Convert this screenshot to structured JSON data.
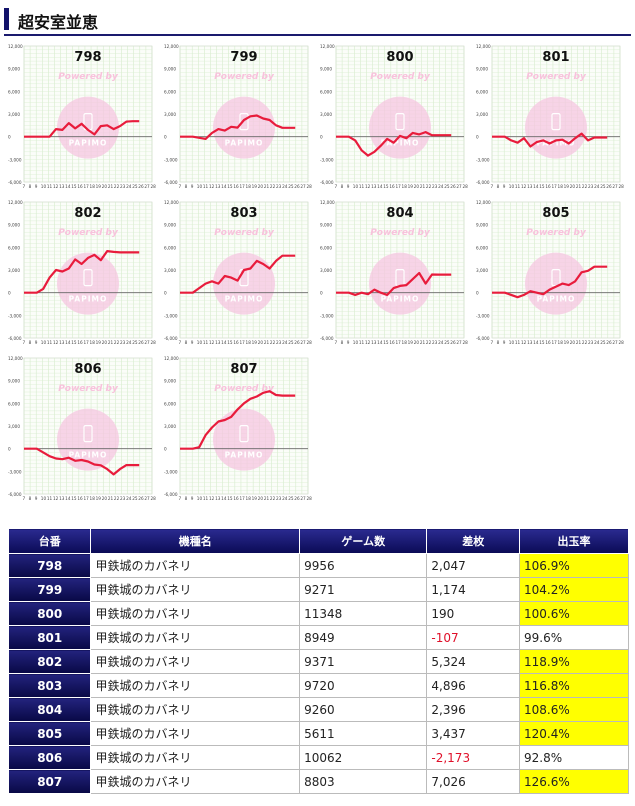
{
  "header": {
    "title": "超安室並恵"
  },
  "graph": {
    "y_ticks": [
      "12,000",
      "9,000",
      "6,000",
      "3,000",
      "0",
      "-3,000",
      "-6,000"
    ],
    "x_ticks": [
      "7",
      "8",
      "9",
      "10",
      "11",
      "12",
      "13",
      "14",
      "15",
      "16",
      "17",
      "18",
      "19",
      "20",
      "21",
      "22",
      "23",
      "24",
      "25",
      "26",
      "27",
      "28"
    ],
    "watermark_top": "Powered by",
    "watermark_bottom": "PAPIMO"
  },
  "chart_data": [
    {
      "type": "line",
      "title": "798",
      "ylim": [
        -6000,
        12000
      ],
      "x": [
        0,
        0.1,
        0.2,
        0.25,
        0.3,
        0.35,
        0.4,
        0.45,
        0.5,
        0.55,
        0.6,
        0.65,
        0.7,
        0.75,
        0.8,
        0.85,
        0.9
      ],
      "values": [
        0,
        0,
        0,
        1000,
        900,
        1800,
        1100,
        1700,
        900,
        300,
        1400,
        1500,
        1000,
        1400,
        2000,
        2047,
        2047
      ]
    },
    {
      "type": "line",
      "title": "799",
      "ylim": [
        -6000,
        12000
      ],
      "x": [
        0,
        0.1,
        0.2,
        0.25,
        0.3,
        0.35,
        0.4,
        0.45,
        0.5,
        0.55,
        0.6,
        0.65,
        0.7,
        0.75,
        0.8,
        0.85,
        0.9
      ],
      "values": [
        0,
        0,
        -300,
        500,
        1000,
        800,
        1300,
        1200,
        2200,
        2700,
        2800,
        2400,
        2200,
        1500,
        1174,
        1174,
        1174
      ]
    },
    {
      "type": "line",
      "title": "800",
      "ylim": [
        -6000,
        12000
      ],
      "x": [
        0,
        0.1,
        0.15,
        0.2,
        0.25,
        0.3,
        0.35,
        0.4,
        0.45,
        0.5,
        0.55,
        0.6,
        0.65,
        0.7,
        0.75,
        0.8,
        0.85,
        0.9
      ],
      "values": [
        0,
        0,
        -500,
        -1800,
        -2500,
        -2000,
        -1200,
        -300,
        -800,
        100,
        -200,
        500,
        300,
        600,
        200,
        190,
        190,
        190
      ]
    },
    {
      "type": "line",
      "title": "801",
      "ylim": [
        -6000,
        12000
      ],
      "x": [
        0,
        0.1,
        0.15,
        0.2,
        0.25,
        0.3,
        0.35,
        0.4,
        0.45,
        0.5,
        0.55,
        0.6,
        0.65,
        0.7,
        0.75,
        0.8,
        0.85,
        0.9
      ],
      "values": [
        0,
        0,
        -500,
        -800,
        -200,
        -1300,
        -700,
        -500,
        -900,
        -500,
        -400,
        -900,
        -200,
        400,
        -500,
        -107,
        -107,
        -107
      ]
    },
    {
      "type": "line",
      "title": "802",
      "ylim": [
        -6000,
        12000
      ],
      "x": [
        0,
        0.1,
        0.15,
        0.2,
        0.25,
        0.3,
        0.35,
        0.4,
        0.45,
        0.5,
        0.55,
        0.6,
        0.65,
        0.7,
        0.75,
        0.8,
        0.85,
        0.9
      ],
      "values": [
        0,
        0,
        500,
        2000,
        3000,
        2800,
        3200,
        4400,
        3800,
        4600,
        5000,
        4300,
        5500,
        5400,
        5324,
        5324,
        5324,
        5324
      ]
    },
    {
      "type": "line",
      "title": "803",
      "ylim": [
        -6000,
        12000
      ],
      "x": [
        0,
        0.1,
        0.15,
        0.2,
        0.25,
        0.3,
        0.35,
        0.4,
        0.45,
        0.5,
        0.55,
        0.6,
        0.65,
        0.7,
        0.75,
        0.8,
        0.85,
        0.9
      ],
      "values": [
        0,
        0,
        600,
        1200,
        1500,
        1200,
        2200,
        2000,
        1600,
        3000,
        3200,
        4200,
        3800,
        3200,
        4200,
        4896,
        4896,
        4896
      ]
    },
    {
      "type": "line",
      "title": "804",
      "ylim": [
        -6000,
        12000
      ],
      "x": [
        0,
        0.1,
        0.15,
        0.2,
        0.25,
        0.3,
        0.35,
        0.4,
        0.45,
        0.5,
        0.55,
        0.6,
        0.65,
        0.7,
        0.75,
        0.8,
        0.85,
        0.9
      ],
      "values": [
        0,
        0,
        -300,
        0,
        -200,
        400,
        0,
        -300,
        600,
        900,
        1000,
        1800,
        2600,
        1200,
        2400,
        2396,
        2396,
        2396
      ]
    },
    {
      "type": "line",
      "title": "805",
      "ylim": [
        -6000,
        12000
      ],
      "x": [
        0,
        0.1,
        0.15,
        0.2,
        0.25,
        0.3,
        0.35,
        0.4,
        0.45,
        0.5,
        0.55,
        0.6,
        0.65,
        0.7,
        0.75,
        0.8,
        0.85,
        0.9
      ],
      "values": [
        0,
        0,
        -300,
        -600,
        -300,
        200,
        0,
        -200,
        400,
        800,
        1200,
        1000,
        1500,
        2700,
        2900,
        3437,
        3437,
        3437
      ]
    },
    {
      "type": "line",
      "title": "806",
      "ylim": [
        -6000,
        12000
      ],
      "x": [
        0,
        0.1,
        0.15,
        0.2,
        0.25,
        0.3,
        0.35,
        0.4,
        0.45,
        0.5,
        0.55,
        0.6,
        0.65,
        0.7,
        0.75,
        0.8,
        0.85,
        0.9
      ],
      "values": [
        0,
        0,
        -500,
        -1000,
        -1300,
        -1400,
        -1200,
        -1600,
        -1500,
        -1700,
        -2100,
        -2200,
        -2700,
        -3400,
        -2700,
        -2173,
        -2173,
        -2173
      ]
    },
    {
      "type": "line",
      "title": "807",
      "ylim": [
        -6000,
        12000
      ],
      "x": [
        0,
        0.1,
        0.15,
        0.2,
        0.25,
        0.3,
        0.35,
        0.4,
        0.45,
        0.5,
        0.55,
        0.6,
        0.65,
        0.7,
        0.75,
        0.8,
        0.85,
        0.9
      ],
      "values": [
        0,
        0,
        200,
        1800,
        2800,
        3600,
        3800,
        4200,
        5200,
        6000,
        6600,
        6900,
        7400,
        7600,
        7100,
        7026,
        7026,
        7026
      ]
    }
  ],
  "table": {
    "headers": [
      "台番",
      "機種名",
      "ゲーム数",
      "差枚",
      "出玉率"
    ],
    "rows": [
      {
        "no": "798",
        "name": "甲鉄城のカバネリ",
        "games": "9956",
        "diff": "2,047",
        "rate": "106.9%",
        "neg": false,
        "hi": true
      },
      {
        "no": "799",
        "name": "甲鉄城のカバネリ",
        "games": "9271",
        "diff": "1,174",
        "rate": "104.2%",
        "neg": false,
        "hi": true
      },
      {
        "no": "800",
        "name": "甲鉄城のカバネリ",
        "games": "11348",
        "diff": "190",
        "rate": "100.6%",
        "neg": false,
        "hi": true
      },
      {
        "no": "801",
        "name": "甲鉄城のカバネリ",
        "games": "8949",
        "diff": "-107",
        "rate": "99.6%",
        "neg": true,
        "hi": false
      },
      {
        "no": "802",
        "name": "甲鉄城のカバネリ",
        "games": "9371",
        "diff": "5,324",
        "rate": "118.9%",
        "neg": false,
        "hi": true
      },
      {
        "no": "803",
        "name": "甲鉄城のカバネリ",
        "games": "9720",
        "diff": "4,896",
        "rate": "116.8%",
        "neg": false,
        "hi": true
      },
      {
        "no": "804",
        "name": "甲鉄城のカバネリ",
        "games": "9260",
        "diff": "2,396",
        "rate": "108.6%",
        "neg": false,
        "hi": true
      },
      {
        "no": "805",
        "name": "甲鉄城のカバネリ",
        "games": "5611",
        "diff": "3,437",
        "rate": "120.4%",
        "neg": false,
        "hi": true
      },
      {
        "no": "806",
        "name": "甲鉄城のカバネリ",
        "games": "10062",
        "diff": "-2,173",
        "rate": "92.8%",
        "neg": true,
        "hi": false
      },
      {
        "no": "807",
        "name": "甲鉄城のカバネリ",
        "games": "8803",
        "diff": "7,026",
        "rate": "126.6%",
        "neg": false,
        "hi": true
      }
    ]
  }
}
